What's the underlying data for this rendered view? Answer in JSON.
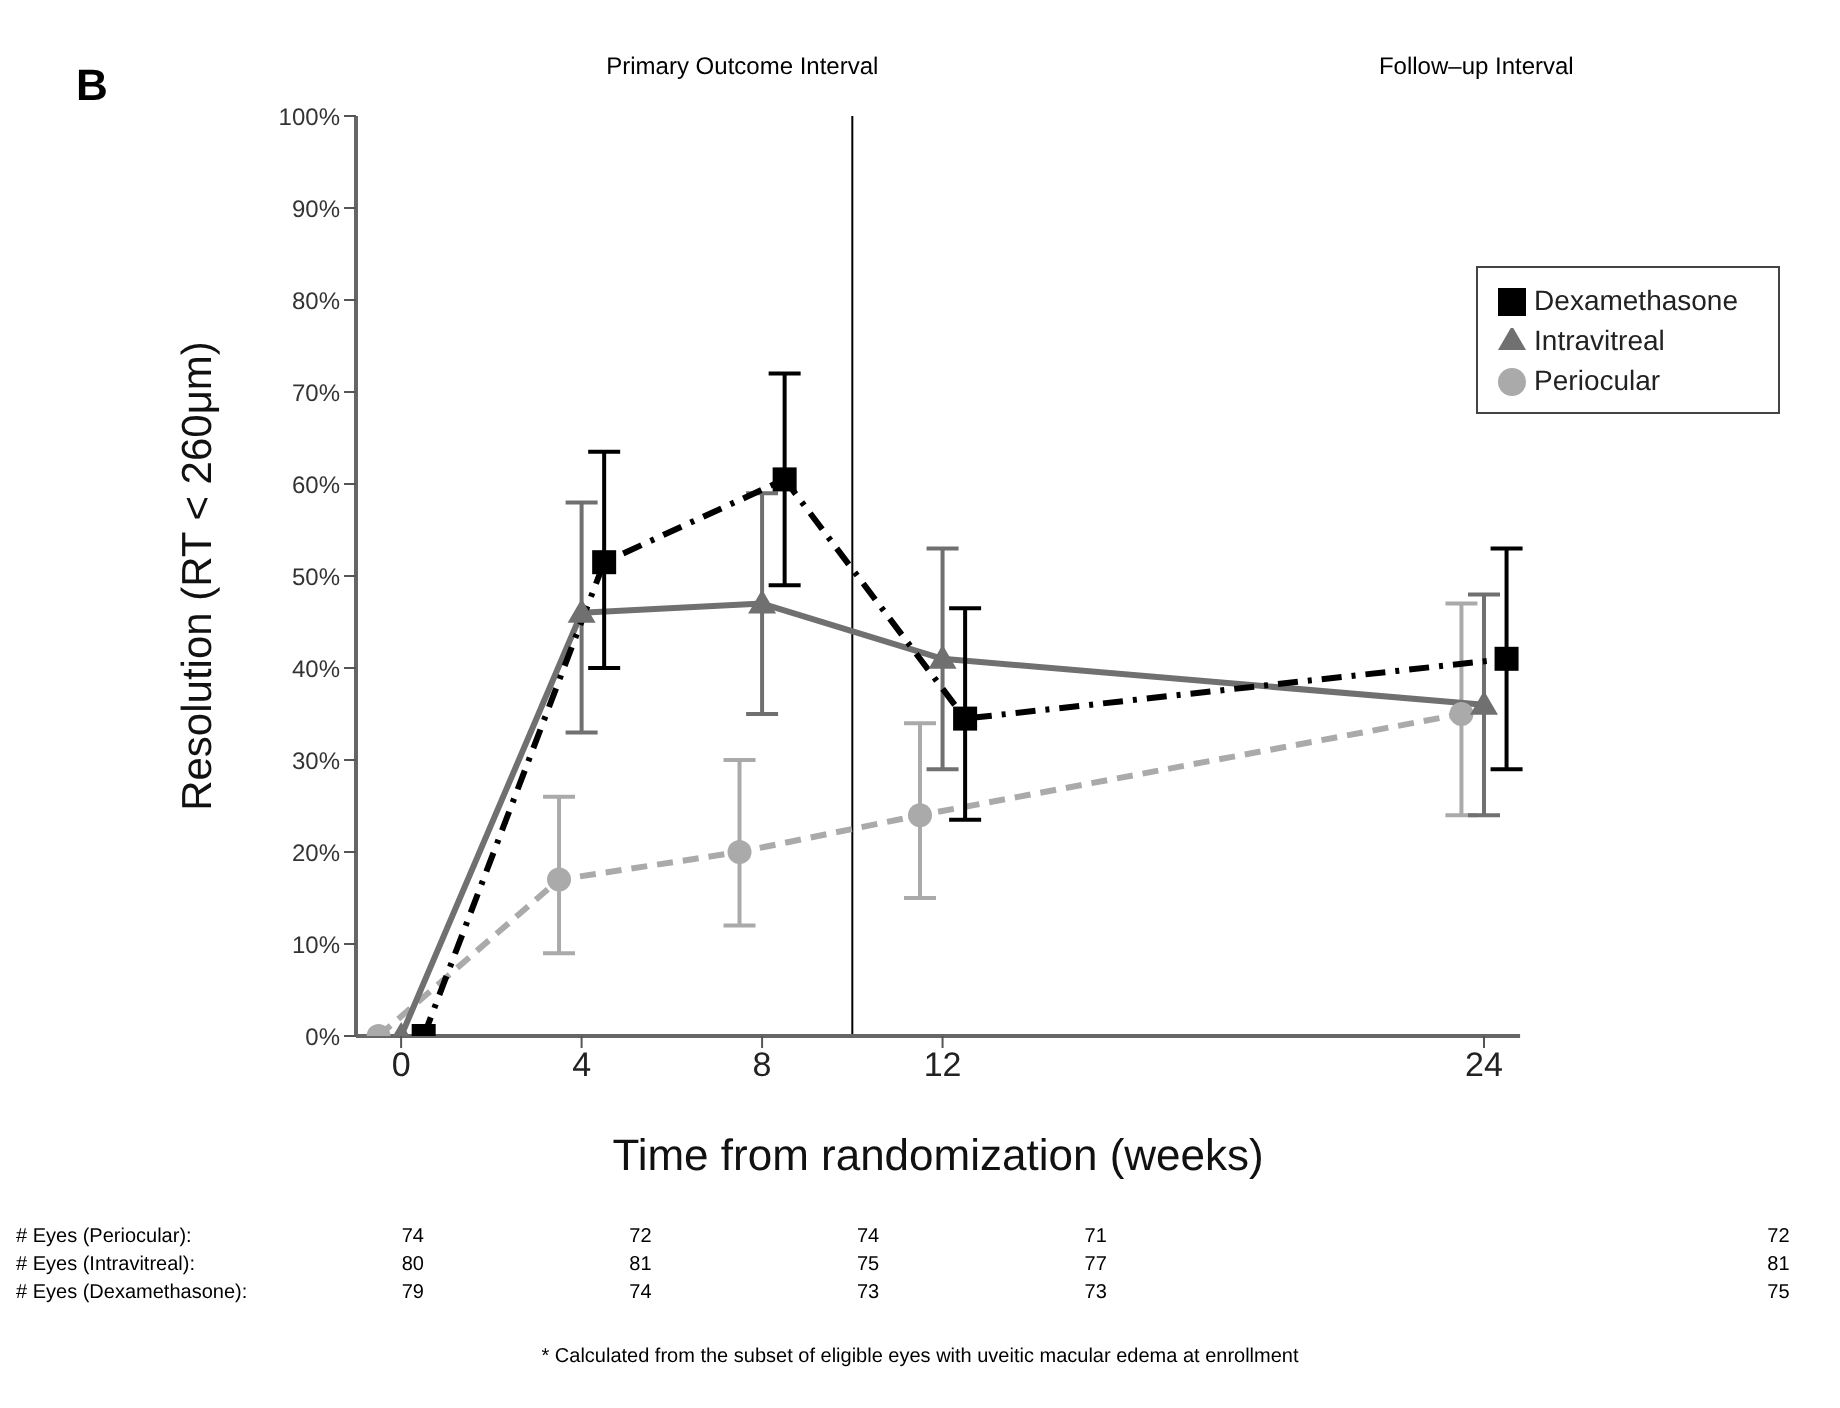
{
  "chart_data": {
    "type": "line",
    "xlabel": "Time from randomization (weeks)",
    "ylabel": "Resolution (RT < 260μm)",
    "xlim": [
      -1,
      24.8
    ],
    "xticks": [
      0,
      4,
      8,
      12,
      24
    ],
    "ylim": [
      0,
      100
    ],
    "yticks": [
      {
        "value": 0,
        "label": "0%"
      },
      {
        "value": 10,
        "label": "10%"
      },
      {
        "value": 20,
        "label": "20%"
      },
      {
        "value": 30,
        "label": "30%"
      },
      {
        "value": 40,
        "label": "40%"
      },
      {
        "value": 50,
        "label": "50%"
      },
      {
        "value": 60,
        "label": "60%"
      },
      {
        "value": 70,
        "label": "70%"
      },
      {
        "value": 80,
        "label": "80%"
      },
      {
        "value": 90,
        "label": "90%"
      },
      {
        "value": 100,
        "label": "100%"
      }
    ],
    "grid": false,
    "legend": "top right",
    "series": [
      {
        "name": "Periocular",
        "color": "#aaaaaa",
        "marker": "circle",
        "line_style": "dashed",
        "x": [
          -0.5,
          3.5,
          7.5,
          11.5,
          23.5
        ],
        "values": [
          0,
          17,
          20,
          24,
          35
        ],
        "errors": [
          null,
          [
            9,
            26
          ],
          [
            12,
            30
          ],
          [
            15,
            34
          ],
          [
            24,
            47
          ]
        ]
      },
      {
        "name": "Intravitreal",
        "color": "#707070",
        "marker": "triangle",
        "line_style": "solid",
        "x": [
          0,
          4,
          8,
          12,
          24
        ],
        "values": [
          0,
          46,
          47,
          41,
          36
        ],
        "errors": [
          null,
          [
            33,
            58
          ],
          [
            35,
            59
          ],
          [
            29,
            53
          ],
          [
            24,
            48
          ]
        ]
      },
      {
        "name": "Dexamethasone",
        "color": "#000000",
        "marker": "square",
        "line_style": "dashdot",
        "x": [
          0.5,
          4.5,
          8.5,
          12.5,
          24.5
        ],
        "values": [
          0,
          51.5,
          60.5,
          34.5,
          41
        ],
        "errors": [
          null,
          [
            40,
            63.5
          ],
          [
            49,
            72
          ],
          [
            23.5,
            46.5
          ],
          [
            29,
            53
          ]
        ]
      }
    ],
    "ref_lines": [
      {
        "axis": "x",
        "value": 10,
        "color": "#000000"
      }
    ],
    "annotations": [
      "B",
      "Primary Outcome Interval",
      "Follow–up Interval",
      "# Eyes (Periocular):",
      "74",
      "72",
      "74",
      "71",
      "72",
      "# Eyes (Intravitreal):",
      "80",
      "81",
      "75",
      "77",
      "81",
      "# Eyes (Dexamethasone):",
      "79",
      "74",
      "73",
      "73",
      "75",
      "*   Calculated from the subset of eligible eyes with uveitic macular edema at enrollment"
    ]
  }
}
